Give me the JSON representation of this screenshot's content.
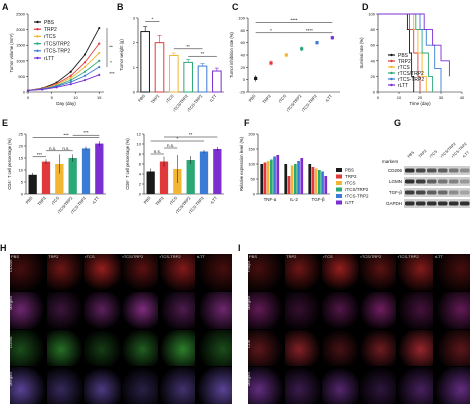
{
  "groups": [
    "PBS",
    "TRP2",
    "rTCS",
    "rTCS/TRP2",
    "rTCS-TRP2",
    "rLTT"
  ],
  "colors": [
    "#1a1a1a",
    "#e0393b",
    "#f2b632",
    "#2aa876",
    "#3a7bd5",
    "#7b2fd1"
  ],
  "panels": {
    "A": "A",
    "B": "B",
    "C": "C",
    "D": "D",
    "E": "E",
    "F": "F",
    "G": "G",
    "H": "H",
    "I": "I"
  },
  "chart_data": [
    {
      "panel": "A",
      "type": "line",
      "xlabel": "Day (day)",
      "ylabel": "Tumor volume (mm³)",
      "x": [
        0,
        3,
        6,
        9,
        12,
        15
      ],
      "xlim": [
        0,
        16
      ],
      "ylim": [
        0,
        2500
      ],
      "xticks": [
        "0",
        "5",
        "10",
        "15"
      ],
      "yticks": [
        "0",
        "500",
        "1000",
        "1500",
        "2000",
        "2500"
      ],
      "significance": [
        "**",
        "*",
        "***"
      ],
      "series": [
        {
          "name": "PBS",
          "values": [
            50,
            120,
            300,
            650,
            1200,
            2050
          ]
        },
        {
          "name": "TRP2",
          "values": [
            50,
            110,
            260,
            520,
            950,
            1550
          ]
        },
        {
          "name": "rTCS",
          "values": [
            50,
            100,
            230,
            450,
            800,
            1250
          ]
        },
        {
          "name": "rTCS/TRP2",
          "values": [
            50,
            95,
            200,
            380,
            650,
            1000
          ]
        },
        {
          "name": "rTCS-TRP2",
          "values": [
            50,
            90,
            180,
            320,
            520,
            800
          ]
        },
        {
          "name": "rLTT",
          "values": [
            50,
            80,
            150,
            250,
            380,
            550
          ]
        }
      ]
    },
    {
      "panel": "B",
      "type": "bar",
      "ylabel": "Tumor weight (g)",
      "categories": [
        "PBS",
        "TRP2",
        "rTCS",
        "rTCS/TRP2",
        "rTCS-TRP2",
        "rLTT"
      ],
      "values": [
        2.45,
        2.0,
        1.48,
        1.2,
        1.05,
        0.85
      ],
      "errors": [
        0.2,
        0.3,
        0.1,
        0.12,
        0.1,
        0.12
      ],
      "ylim": [
        0,
        3
      ],
      "yticks": [
        "0",
        "1",
        "2",
        "3"
      ],
      "significance": [
        "*",
        "**",
        "**"
      ]
    },
    {
      "panel": "C",
      "type": "scatter",
      "ylabel": "Tumor inhibition rate (%)",
      "categories": [
        "PBS",
        "TRP2",
        "rTCS",
        "rTCS/TRP2",
        "rTCS-TRP2",
        "rLTT"
      ],
      "values": [
        2,
        27,
        40,
        50,
        60,
        68
      ],
      "errors": [
        5,
        4,
        3,
        4,
        3,
        3
      ],
      "ylim": [
        -20,
        100
      ],
      "yticks": [
        "-20",
        "0",
        "20",
        "40",
        "60",
        "80",
        "100"
      ],
      "significance": [
        "*",
        "****",
        "****"
      ]
    },
    {
      "panel": "D",
      "type": "line",
      "xlabel": "Time (day)",
      "ylabel": "Survival rate (%)",
      "xlim": [
        0,
        40
      ],
      "ylim": [
        0,
        100
      ],
      "xticks": [
        "0",
        "10",
        "20",
        "30",
        "40"
      ],
      "yticks": [
        "0",
        "20",
        "40",
        "60",
        "80",
        "100"
      ],
      "series": [
        {
          "name": "PBS",
          "x": [
            0,
            13,
            14,
            15,
            16,
            17
          ],
          "values": [
            100,
            100,
            80,
            50,
            20,
            0
          ]
        },
        {
          "name": "TRP2",
          "x": [
            0,
            14,
            15,
            17,
            19,
            20
          ],
          "values": [
            100,
            100,
            80,
            50,
            20,
            0
          ]
        },
        {
          "name": "rTCS",
          "x": [
            0,
            15,
            17,
            19,
            21,
            23
          ],
          "values": [
            100,
            100,
            80,
            50,
            20,
            0
          ]
        },
        {
          "name": "rTCS/TRP2",
          "x": [
            0,
            16,
            18,
            21,
            24,
            26
          ],
          "values": [
            100,
            100,
            80,
            50,
            20,
            0
          ]
        },
        {
          "name": "rTCS-TRP2",
          "x": [
            0,
            17,
            20,
            23,
            27,
            30
          ],
          "values": [
            100,
            100,
            80,
            60,
            30,
            0
          ]
        },
        {
          "name": "rLTT",
          "x": [
            0,
            19,
            22,
            26,
            30,
            34
          ],
          "values": [
            100,
            100,
            80,
            60,
            40,
            20
          ]
        }
      ]
    },
    {
      "panel": "E1",
      "type": "bar",
      "ylabel": "CD4⁺ T cell percentage (%)",
      "categories": [
        "PBS",
        "TRP2",
        "rTCS",
        "rTCS/TRP2",
        "rTCS-TRP2",
        "rLTT"
      ],
      "values": [
        8,
        13.5,
        12.5,
        15,
        19,
        21
      ],
      "errors": [
        0.8,
        1,
        4,
        1.5,
        0.8,
        1
      ],
      "ylim": [
        0,
        25
      ],
      "yticks": [
        "0",
        "5",
        "10",
        "15",
        "20",
        "25"
      ],
      "significance": [
        "***",
        "n.s.",
        "n.s.",
        "***",
        "***"
      ]
    },
    {
      "panel": "E2",
      "type": "bar",
      "ylabel": "CD8⁺ T cell percentage (%)",
      "categories": [
        "PBS",
        "TRP2",
        "rTCS",
        "rTCS/TRP2",
        "rTCS-TRP2",
        "rLTT"
      ],
      "values": [
        4.5,
        6.5,
        5.0,
        6.8,
        8.5,
        9.0
      ],
      "errors": [
        0.6,
        1.0,
        2.8,
        0.8,
        0.3,
        0.4
      ],
      "ylim": [
        0,
        12
      ],
      "yticks": [
        "0",
        "2",
        "4",
        "6",
        "8",
        "10",
        "12"
      ],
      "significance": [
        "n.s.",
        "n.s.",
        "*",
        "**"
      ]
    },
    {
      "panel": "F",
      "type": "bar",
      "ylabel": "Relative expression level (%)",
      "categories": [
        "TNF-α",
        "IL-2",
        "TGF-β"
      ],
      "ylim": [
        0,
        200
      ],
      "yticks": [
        "0",
        "50",
        "100",
        "150",
        "200"
      ],
      "series": [
        {
          "name": "PBS",
          "values": [
            100,
            100,
            100
          ]
        },
        {
          "name": "TRP2",
          "values": [
            105,
            60,
            90
          ]
        },
        {
          "name": "rTCS",
          "values": [
            110,
            95,
            85
          ]
        },
        {
          "name": "rTCS/TRP2",
          "values": [
            115,
            100,
            80
          ]
        },
        {
          "name": "rTCS-TRP2",
          "values": [
            125,
            110,
            75
          ]
        },
        {
          "name": "rLTT",
          "values": [
            130,
            120,
            60
          ]
        }
      ]
    }
  ],
  "blot": {
    "markers_label": "markers",
    "rows": [
      "CD206",
      "LGMN",
      "TGF-β",
      "GAPDH"
    ]
  },
  "micro_H": {
    "columns": [
      "PBS",
      "TRP2",
      "rTCS",
      "rTCS/TRP2",
      "rTCS-TRP2",
      "rLTT"
    ],
    "rows": [
      "CD206",
      "Merged",
      "LGMN",
      "Merged"
    ]
  },
  "micro_I": {
    "columns": [
      "PBS",
      "TRP2",
      "rTCS",
      "rTCS/TRP2",
      "rTCS-TRP2",
      "rLTT"
    ],
    "rows": [
      "Foxp3",
      "Merged",
      "CD8",
      "Merged"
    ]
  }
}
